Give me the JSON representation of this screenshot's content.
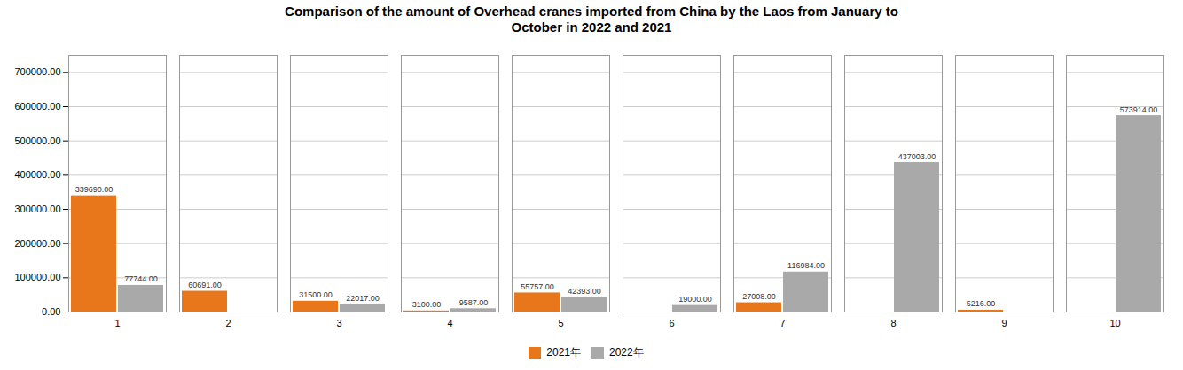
{
  "chart_data": {
    "type": "bar",
    "title": "Comparison of the amount of Overhead cranes imported from China by the Laos from January to\nOctober in 2022 and 2021",
    "categories": [
      "1",
      "2",
      "3",
      "4",
      "5",
      "6",
      "7",
      "8",
      "9",
      "10"
    ],
    "series": [
      {
        "name": "2021年",
        "color": "#E8761A",
        "values": [
          339690.0,
          60691.0,
          31500.0,
          3100.0,
          55757.0,
          0.0,
          27008.0,
          0.0,
          5216.0,
          0.0
        ],
        "value_labels": [
          "339690.00",
          "60691.00",
          "31500.00",
          "3100.00",
          "55757.00",
          null,
          "27008.00",
          null,
          "5216.00",
          null
        ]
      },
      {
        "name": "2022年",
        "color": "#A9A9A9",
        "values": [
          77744.0,
          0.0,
          22017.0,
          9587.0,
          42393.0,
          19000.0,
          116984.0,
          437003.0,
          0.0,
          573914.0
        ],
        "value_labels": [
          "77744.00",
          null,
          "22017.00",
          "9587.00",
          "42393.00",
          "19000.00",
          "116984.00",
          "437003.00",
          null,
          "573914.00"
        ]
      }
    ],
    "ylim": [
      0,
      750000
    ],
    "yticks": [
      {
        "value": 0,
        "label": "0.00"
      },
      {
        "value": 100000,
        "label": "100000.00"
      },
      {
        "value": 200000,
        "label": "200000.00"
      },
      {
        "value": 300000,
        "label": "300000.00"
      },
      {
        "value": 400000,
        "label": "400000.00"
      },
      {
        "value": 500000,
        "label": "500000.00"
      },
      {
        "value": 600000,
        "label": "600000.00"
      },
      {
        "value": 700000,
        "label": "700000.00"
      }
    ],
    "grid": true,
    "legend": "bottom",
    "data_labels": true
  }
}
